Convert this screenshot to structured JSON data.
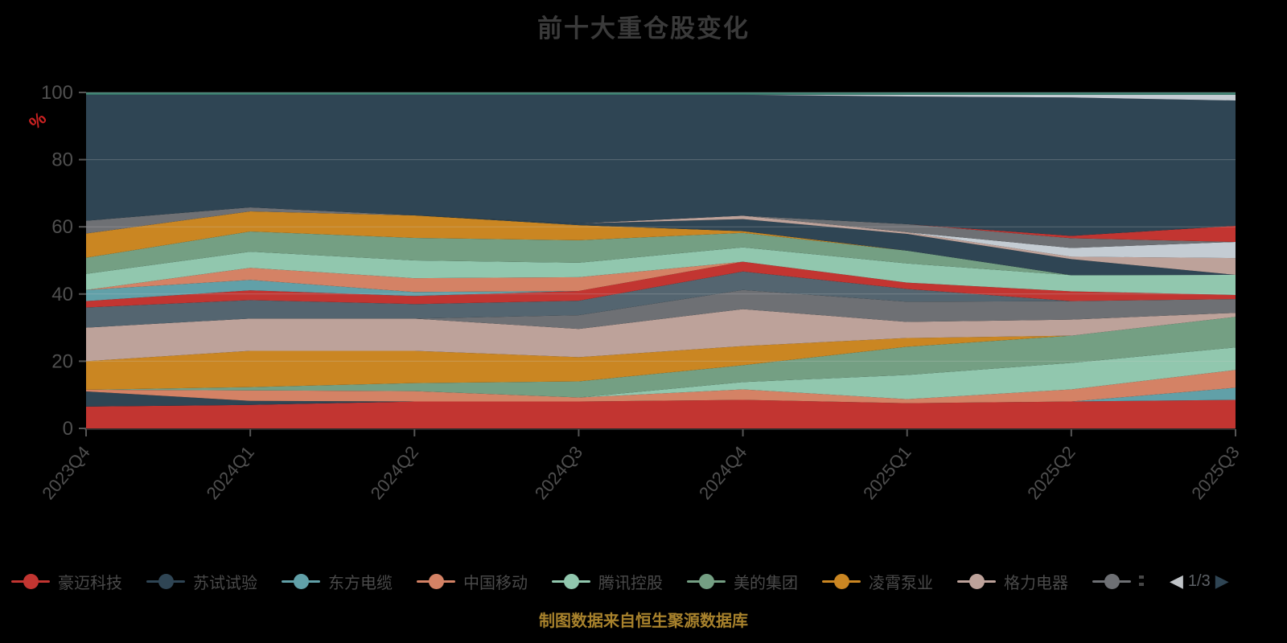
{
  "title": "前十大重仓股变化",
  "footer_note": "制图数据来自恒生聚源数据库",
  "y_axis_name": "%",
  "y_axis_name_color": "#cc2222",
  "legend": {
    "items": [
      {
        "label": "豪迈科技",
        "color": "#c23531",
        "clipped": false
      },
      {
        "label": "苏试试验",
        "color": "#2f4554",
        "clipped": false
      },
      {
        "label": "东方电缆",
        "color": "#61a0a8",
        "clipped": false
      },
      {
        "label": "中国移动",
        "color": "#d48265",
        "clipped": false
      },
      {
        "label": "腾讯控股",
        "color": "#91c7ae",
        "clipped": false
      },
      {
        "label": "美的集团",
        "color": "#749f83",
        "clipped": false
      },
      {
        "label": "凌霄泵业",
        "color": "#ca8622",
        "clipped": false
      },
      {
        "label": "格力电器",
        "color": "#bda29a",
        "clipped": false
      },
      {
        "label": "",
        "color": "#6e7074",
        "clipped": true
      }
    ],
    "pager": {
      "page": "1/3",
      "prev_icon": "left-triangle",
      "next_icon": "right-triangle"
    }
  },
  "chart_data": {
    "type": "area",
    "stacked": true,
    "title": "前十大重仓股变化",
    "xlabel": "",
    "ylabel": "%",
    "ylim": [
      0,
      100
    ],
    "grid": true,
    "legend_position": "bottom",
    "categories": [
      "2023Q4",
      "2024Q1",
      "2024Q2",
      "2024Q3",
      "2024Q4",
      "2025Q1",
      "2025Q2",
      "2025Q3"
    ],
    "y_ticks": [
      0,
      20,
      40,
      60,
      80,
      100
    ],
    "series": [
      {
        "name": "豪迈科技",
        "color": "#c23531",
        "values": [
          6.5,
          7.0,
          8.0,
          8.0,
          8.5,
          7.5,
          8.0,
          8.5
        ]
      },
      {
        "name": "苏试试验",
        "color": "#2f4554",
        "values": [
          4.5,
          1.2,
          0,
          0,
          0,
          0,
          0,
          0
        ]
      },
      {
        "name": "东方电缆",
        "color": "#61a0a8",
        "values": [
          0,
          0,
          0,
          0,
          0,
          0,
          0,
          3.6
        ]
      },
      {
        "name": "中国移动",
        "color": "#d48265",
        "values": [
          0.5,
          3.1,
          3.1,
          1.2,
          3.1,
          1.2,
          3.6,
          5.3
        ]
      },
      {
        "name": "腾讯控股",
        "color": "#91c7ae",
        "values": [
          0,
          0,
          0,
          0,
          2.2,
          7.2,
          7.9,
          6.7
        ]
      },
      {
        "name": "美的集团",
        "color": "#749f83",
        "values": [
          0,
          1.0,
          2.4,
          4.8,
          5.0,
          8.4,
          8.1,
          9.1
        ]
      },
      {
        "name": "凌霄泵业",
        "color": "#ca8622",
        "values": [
          8.5,
          10.8,
          9.6,
          7.2,
          5.7,
          2.6,
          0,
          0
        ]
      },
      {
        "name": "格力电器",
        "color": "#bda29a",
        "values": [
          10.0,
          9.6,
          9.6,
          8.4,
          11.0,
          4.8,
          4.8,
          1.2
        ]
      },
      {
        "name": "",
        "color": "#6e7074",
        "values": [
          0,
          0,
          0,
          4.1,
          5.7,
          6.0,
          5.5,
          4.1
        ]
      },
      {
        "name": "",
        "color": "#546570",
        "values": [
          6.0,
          5.5,
          4.3,
          4.3,
          5.5,
          3.8,
          0,
          0
        ]
      },
      {
        "name": "",
        "color": "#c23531",
        "values": [
          1.9,
          2.9,
          2.4,
          2.9,
          2.9,
          1.9,
          2.9,
          1.2
        ]
      },
      {
        "name": "",
        "color": "#61a0a8",
        "values": [
          3.3,
          3.1,
          1.2,
          0,
          0,
          0,
          0,
          0
        ]
      },
      {
        "name": "",
        "color": "#d48265",
        "values": [
          0,
          3.6,
          4.1,
          4.1,
          0,
          0,
          0,
          0
        ]
      },
      {
        "name": "",
        "color": "#91c7ae",
        "values": [
          4.8,
          4.8,
          5.3,
          4.3,
          4.3,
          5.7,
          4.8,
          6.0
        ]
      },
      {
        "name": "",
        "color": "#749f83",
        "values": [
          4.8,
          6.0,
          6.7,
          6.7,
          4.3,
          3.8,
          0,
          0
        ]
      },
      {
        "name": "",
        "color": "#ca8622",
        "values": [
          7.2,
          6.0,
          6.7,
          4.5,
          0.5,
          0,
          0,
          0
        ]
      },
      {
        "name": "",
        "color": "#2f4554",
        "values": [
          0,
          0,
          0,
          0.5,
          3.6,
          5.0,
          4.8,
          0
        ]
      },
      {
        "name": "",
        "color": "#bda29a",
        "values": [
          0,
          0,
          0,
          0,
          1.0,
          0.5,
          0.7,
          5.0
        ]
      },
      {
        "name": "",
        "color": "#c4ccd3",
        "values": [
          0,
          0,
          0,
          0,
          0,
          0,
          2.6,
          4.8
        ]
      },
      {
        "name": "",
        "color": "#6e7074",
        "values": [
          3.8,
          1.2,
          0,
          0,
          0,
          2.4,
          2.9,
          0
        ]
      },
      {
        "name": "",
        "color": "#c23531",
        "values": [
          0,
          0,
          0,
          0,
          0,
          0,
          0.7,
          4.8
        ]
      },
      {
        "name": "",
        "color": "#2f4554",
        "values": [
          37.5,
          33.5,
          35.9,
          38.3,
          36.0,
          38.0,
          41.2,
          37.3
        ]
      },
      {
        "name": "",
        "color": "#c4ccd3",
        "values": [
          0,
          0,
          0,
          0,
          0,
          0.5,
          0.8,
          1.7
        ]
      },
      {
        "name": "",
        "color": "#3e8272",
        "values": [
          0.7,
          0.7,
          0.7,
          0.7,
          0.7,
          0.7,
          0.7,
          0.7
        ]
      }
    ]
  }
}
